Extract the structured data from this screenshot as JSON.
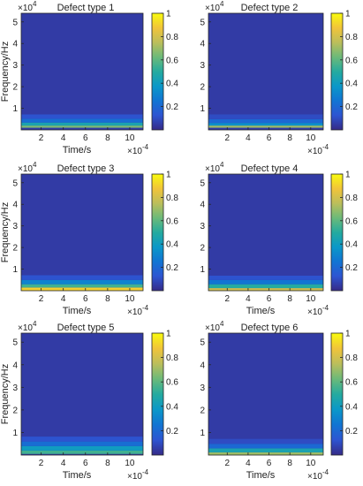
{
  "chart_data": [
    {
      "type": "heatmap",
      "title": "Defect type 1",
      "xlabel": "Time/s",
      "ylabel": "Frequency/Hz",
      "x_exponent_label": "×10",
      "x_exponent": "-4",
      "y_exponent_label": "×10",
      "y_exponent": "4",
      "xticks": [
        "2",
        "4",
        "6",
        "8",
        "10"
      ],
      "yticks": [
        "1",
        "2",
        "3",
        "4",
        "5"
      ],
      "colorbar_ticks": [
        "0.2",
        "0.4",
        "0.6",
        "0.8",
        "1"
      ],
      "xlim": [
        0.2,
        11.2
      ],
      "ylim": [
        0,
        5.4
      ],
      "clim": [
        0,
        1
      ],
      "frequency_bands": [
        {
          "freq": [
            0.1,
            0.2
          ],
          "value": 0.65
        },
        {
          "freq": [
            0.2,
            0.34
          ],
          "value": 0.45
        },
        {
          "freq": [
            0.34,
            0.52
          ],
          "value": 0.22
        },
        {
          "freq": [
            0.52,
            0.72
          ],
          "value": 0.12
        },
        {
          "freq": [
            0.72,
            5.4
          ],
          "value": 0.05
        }
      ]
    },
    {
      "type": "heatmap",
      "title": "Defect type 2",
      "xlabel": "",
      "ylabel": "",
      "x_exponent_label": "×10",
      "x_exponent": "-4",
      "y_exponent_label": "×10",
      "y_exponent": "4",
      "xticks": [
        "2",
        "4",
        "6",
        "8",
        "10"
      ],
      "yticks": [
        "1",
        "2",
        "3",
        "4",
        "5"
      ],
      "colorbar_ticks": [
        "0.2",
        "0.4",
        "0.6",
        "0.8",
        "1"
      ],
      "xlim": [
        0.2,
        11.2
      ],
      "ylim": [
        0,
        5.4
      ],
      "clim": [
        0,
        1
      ],
      "frequency_bands": [
        {
          "freq": [
            0.1,
            0.2
          ],
          "value": 0.7
        },
        {
          "freq": [
            0.2,
            0.32
          ],
          "value": 0.35
        },
        {
          "freq": [
            0.32,
            0.5
          ],
          "value": 0.2
        },
        {
          "freq": [
            0.5,
            0.72
          ],
          "value": 0.1
        },
        {
          "freq": [
            0.72,
            5.4
          ],
          "value": 0.05
        }
      ]
    },
    {
      "type": "heatmap",
      "title": "Defect type 3",
      "xlabel": "Time/s",
      "ylabel": "Frequency/Hz",
      "x_exponent_label": "×10",
      "x_exponent": "-4",
      "y_exponent_label": "×10",
      "y_exponent": "4",
      "xticks": [
        "2",
        "4",
        "6",
        "8",
        "10"
      ],
      "yticks": [
        "1",
        "2",
        "3",
        "4",
        "5"
      ],
      "colorbar_ticks": [
        "0.2",
        "0.4",
        "0.6",
        "0.8",
        "1"
      ],
      "xlim": [
        0.2,
        11.2
      ],
      "ylim": [
        0,
        5.4
      ],
      "clim": [
        0,
        1
      ],
      "frequency_bands": [
        {
          "freq": [
            0.0,
            0.15
          ],
          "value": 0.9
        },
        {
          "freq": [
            0.15,
            0.3
          ],
          "value": 0.55
        },
        {
          "freq": [
            0.3,
            0.5
          ],
          "value": 0.3
        },
        {
          "freq": [
            0.5,
            0.72
          ],
          "value": 0.12
        },
        {
          "freq": [
            0.72,
            5.4
          ],
          "value": 0.05
        }
      ]
    },
    {
      "type": "heatmap",
      "title": "Defect type 4",
      "xlabel": "Time/s",
      "ylabel": "",
      "x_exponent_label": "×10",
      "x_exponent": "-4",
      "y_exponent_label": "×10",
      "y_exponent": "4",
      "xticks": [
        "2",
        "4",
        "6",
        "8",
        "10"
      ],
      "yticks": [
        "1",
        "2",
        "3",
        "4",
        "5"
      ],
      "colorbar_ticks": [
        "0.2",
        "0.4",
        "0.6",
        "0.8",
        "1"
      ],
      "xlim": [
        0.2,
        11.2
      ],
      "ylim": [
        0,
        5.4
      ],
      "clim": [
        0,
        1
      ],
      "frequency_bands": [
        {
          "freq": [
            0.0,
            0.12
          ],
          "value": 0.8
        },
        {
          "freq": [
            0.12,
            0.3
          ],
          "value": 0.5
        },
        {
          "freq": [
            0.3,
            0.5
          ],
          "value": 0.25
        },
        {
          "freq": [
            0.5,
            0.7
          ],
          "value": 0.12
        },
        {
          "freq": [
            0.7,
            5.4
          ],
          "value": 0.05
        }
      ]
    },
    {
      "type": "heatmap",
      "title": "Defect type 5",
      "xlabel": "Time/s",
      "ylabel": "Frequency/Hz",
      "x_exponent_label": "×10",
      "x_exponent": "-4",
      "y_exponent_label": "×10",
      "y_exponent": "4",
      "xticks": [
        "2",
        "4",
        "6",
        "8",
        "10"
      ],
      "yticks": [
        "1",
        "2",
        "3",
        "4",
        "5"
      ],
      "colorbar_ticks": [
        "0.2",
        "0.4",
        "0.6",
        "0.8",
        "1"
      ],
      "xlim": [
        0.2,
        11.2
      ],
      "ylim": [
        0,
        5.4
      ],
      "clim": [
        0,
        1
      ],
      "frequency_bands": [
        {
          "freq": [
            0.05,
            0.2
          ],
          "value": 0.55
        },
        {
          "freq": [
            0.2,
            0.4
          ],
          "value": 0.4
        },
        {
          "freq": [
            0.4,
            0.6
          ],
          "value": 0.22
        },
        {
          "freq": [
            0.6,
            0.82
          ],
          "value": 0.12
        },
        {
          "freq": [
            0.82,
            5.4
          ],
          "value": 0.05
        }
      ]
    },
    {
      "type": "heatmap",
      "title": "Defect type 6",
      "xlabel": "Time/s",
      "ylabel": "",
      "x_exponent_label": "×10",
      "x_exponent": "-4",
      "y_exponent_label": "×10",
      "y_exponent": "4",
      "xticks": [
        "2",
        "4",
        "6",
        "8",
        "10"
      ],
      "yticks": [
        "1",
        "2",
        "3",
        "4",
        "5"
      ],
      "colorbar_ticks": [
        "0.2",
        "0.4",
        "0.6",
        "0.8",
        "1"
      ],
      "xlim": [
        0.2,
        11.2
      ],
      "ylim": [
        0,
        5.4
      ],
      "clim": [
        0,
        1
      ],
      "frequency_bands": [
        {
          "freq": [
            0.0,
            0.12
          ],
          "value": 0.7
        },
        {
          "freq": [
            0.12,
            0.3
          ],
          "value": 0.45
        },
        {
          "freq": [
            0.3,
            0.5
          ],
          "value": 0.2
        },
        {
          "freq": [
            0.5,
            0.72
          ],
          "value": 0.1
        },
        {
          "freq": [
            0.72,
            5.4
          ],
          "value": 0.05
        }
      ]
    }
  ],
  "colors": {
    "colormap": [
      "#352a87",
      "#2d55d2",
      "#1175d3",
      "#0b98c8",
      "#25ab9f",
      "#6cba79",
      "#bcbe5b",
      "#f1c43a",
      "#f9fb0e"
    ],
    "axis": "#262626"
  }
}
